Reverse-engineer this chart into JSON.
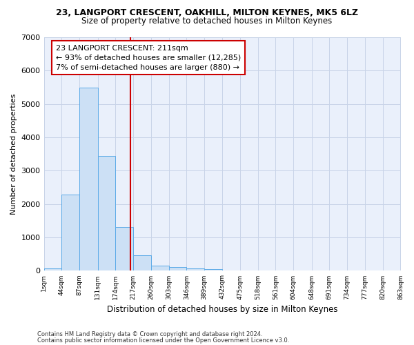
{
  "title1": "23, LANGPORT CRESCENT, OAKHILL, MILTON KEYNES, MK5 6LZ",
  "title2": "Size of property relative to detached houses in Milton Keynes",
  "xlabel": "Distribution of detached houses by size in Milton Keynes",
  "ylabel": "Number of detached properties",
  "footer1": "Contains HM Land Registry data © Crown copyright and database right 2024.",
  "footer2": "Contains public sector information licensed under the Open Government Licence v3.0.",
  "bar_color": "#cce0f5",
  "bar_edge_color": "#5baae7",
  "grid_color": "#c8d4e8",
  "annotation_box_color": "#cc0000",
  "vline_color": "#cc0000",
  "annotation_line1": "23 LANGPORT CRESCENT: 211sqm",
  "annotation_line2": "← 93% of detached houses are smaller (12,285)",
  "annotation_line3": "7% of semi-detached houses are larger (880) →",
  "property_size_sqm": 211,
  "bin_edges": [
    1,
    44,
    87,
    131,
    174,
    217,
    260,
    303,
    346,
    389,
    432,
    475,
    518,
    561,
    604,
    648,
    691,
    734,
    777,
    820,
    863
  ],
  "bin_counts": [
    80,
    2280,
    5480,
    3450,
    1320,
    460,
    160,
    110,
    80,
    50,
    0,
    0,
    0,
    0,
    0,
    0,
    0,
    0,
    0,
    0
  ],
  "ylim": [
    0,
    7000
  ],
  "yticks": [
    0,
    1000,
    2000,
    3000,
    4000,
    5000,
    6000,
    7000
  ],
  "background_color": "#eaf0fb"
}
